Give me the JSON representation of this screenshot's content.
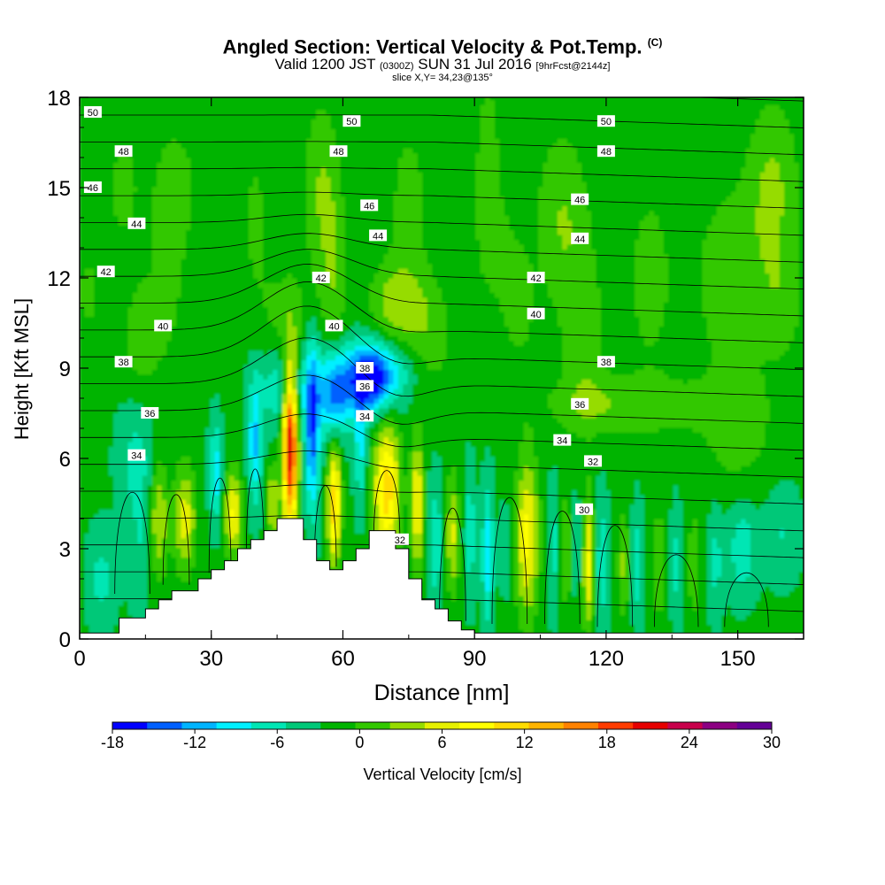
{
  "header": {
    "title": "Angled Section: Vertical Velocity & Pot.Temp.",
    "title_tag": "(C)",
    "valid_prefix": "Valid 1200 JST",
    "valid_utc": "(0300Z)",
    "valid_date": "SUN 31 Jul 2016",
    "forecast": "[9hrFcst@2144z]",
    "slice": "slice X,Y= 34,23@135°"
  },
  "chart_data": {
    "type": "heatmap",
    "xlabel": "Distance [nm]",
    "ylabel": "Height [Kft MSL]",
    "xlim": [
      0,
      165
    ],
    "ylim": [
      0,
      18
    ],
    "xticks": [
      "0",
      "30",
      "60",
      "90",
      "120",
      "150"
    ],
    "xtick_values": [
      0,
      30,
      60,
      90,
      120,
      150
    ],
    "yticks": [
      "0",
      "3",
      "6",
      "9",
      "12",
      "15",
      "18"
    ],
    "ytick_values": [
      0,
      3,
      6,
      9,
      12,
      15,
      18
    ],
    "colorbar": {
      "label": "Vertical Velocity [cm/s]",
      "min": -18,
      "max": 30,
      "step": 3,
      "tick_labels": [
        "-18",
        "-12",
        "-6",
        "0",
        "6",
        "12",
        "18",
        "24",
        "30"
      ],
      "tick_values": [
        -18,
        -12,
        -6,
        0,
        6,
        12,
        18,
        24,
        30
      ],
      "colors": [
        "#0000ff",
        "#0060ff",
        "#00b4ff",
        "#00f0ff",
        "#00e6b4",
        "#00c878",
        "#00b400",
        "#32c800",
        "#96dc00",
        "#e6f000",
        "#ffff00",
        "#ffdc00",
        "#ffb400",
        "#ff8200",
        "#ff3c00",
        "#e60000",
        "#c8004b",
        "#8c0082",
        "#640096"
      ]
    },
    "velocity_features": [
      {
        "x": 2,
        "y": 11.5,
        "w": 0.17,
        "sx": 2,
        "sy": 1
      },
      {
        "x": 10,
        "y": 15,
        "w": 0.12,
        "sx": 4,
        "sy": 2
      },
      {
        "x": 14,
        "y": 10,
        "w": 0.15,
        "sx": 4,
        "sy": 2
      },
      {
        "x": 20,
        "y": 12,
        "w": 0.12,
        "sx": 4,
        "sy": 3
      },
      {
        "x": 22,
        "y": 15,
        "w": 0.14,
        "sx": 5,
        "sy": 2
      },
      {
        "x": 40,
        "y": 14,
        "w": 0.1,
        "sx": 4,
        "sy": 3
      },
      {
        "x": 47,
        "y": 10.5,
        "w": 0.12,
        "sx": 6,
        "sy": 2
      },
      {
        "x": 55,
        "y": 15,
        "w": 0.18,
        "sx": 4,
        "sy": 3
      },
      {
        "x": 58,
        "y": 12,
        "w": 0.15,
        "sx": 3,
        "sy": 3
      },
      {
        "x": 72,
        "y": 11,
        "w": 0.25,
        "sx": 6,
        "sy": 1.5
      },
      {
        "x": 75,
        "y": 14.5,
        "w": 0.12,
        "sx": 5,
        "sy": 3
      },
      {
        "x": 80,
        "y": 10,
        "w": 0.15,
        "sx": 5,
        "sy": 2
      },
      {
        "x": 93,
        "y": 16,
        "w": 0.14,
        "sx": 3,
        "sy": 3
      },
      {
        "x": 95,
        "y": 13,
        "w": 0.1,
        "sx": 5,
        "sy": 2
      },
      {
        "x": 100,
        "y": 11,
        "w": 0.12,
        "sx": 4,
        "sy": 2
      },
      {
        "x": 110,
        "y": 14,
        "w": 0.18,
        "sx": 6,
        "sy": 3
      },
      {
        "x": 115,
        "y": 10,
        "w": 0.14,
        "sx": 5,
        "sy": 3
      },
      {
        "x": 125,
        "y": 7.8,
        "w": 0.17,
        "sx": 20,
        "sy": 1
      },
      {
        "x": 130,
        "y": 12,
        "w": 0.14,
        "sx": 5,
        "sy": 3
      },
      {
        "x": 148,
        "y": 12,
        "w": 0.16,
        "sx": 8,
        "sy": 3
      },
      {
        "x": 158,
        "y": 15,
        "w": 0.2,
        "sx": 6,
        "sy": 3
      },
      {
        "x": 150,
        "y": 7,
        "w": 0.14,
        "sx": 8,
        "sy": 2
      },
      {
        "x": 160,
        "y": 11,
        "w": 0.12,
        "sx": 5,
        "sy": 2
      },
      {
        "x": 5,
        "y": 2,
        "w": -0.15,
        "sx": 3,
        "sy": 1.5
      },
      {
        "x": 13,
        "y": 6,
        "w": -0.15,
        "sx": 4,
        "sy": 2
      },
      {
        "x": 14,
        "y": 3,
        "w": -0.1,
        "sx": 3,
        "sy": 2
      },
      {
        "x": 18,
        "y": 4,
        "w": 0.3,
        "sx": 2,
        "sy": 2
      },
      {
        "x": 24,
        "y": 4,
        "w": 0.33,
        "sx": 2.5,
        "sy": 1.8
      },
      {
        "x": 31,
        "y": 5.5,
        "w": -0.3,
        "sx": 1.3,
        "sy": 1.6
      },
      {
        "x": 35,
        "y": 4.2,
        "w": 0.4,
        "sx": 2,
        "sy": 1.4
      },
      {
        "x": 40,
        "y": 6.5,
        "w": -0.33,
        "sx": 1.5,
        "sy": 2
      },
      {
        "x": 44,
        "y": 4.5,
        "w": 0.3,
        "sx": 1.5,
        "sy": 1.2
      },
      {
        "x": 48,
        "y": 6.5,
        "w": 1,
        "sx": 1.7,
        "sy": 2.8
      },
      {
        "x": 47,
        "y": 8.4,
        "w": -0.25,
        "sx": 6,
        "sy": 1.4
      },
      {
        "x": 53,
        "y": 7,
        "w": -0.47,
        "sx": 1.6,
        "sy": 2.7
      },
      {
        "x": 58,
        "y": 4.5,
        "w": 0.55,
        "sx": 1.5,
        "sy": 2
      },
      {
        "x": 58,
        "y": 8.2,
        "w": -0.45,
        "sx": 4,
        "sy": 1.4
      },
      {
        "x": 64,
        "y": 6.5,
        "w": -0.25,
        "sx": 1.3,
        "sy": 2
      },
      {
        "x": 66,
        "y": 8.6,
        "w": -0.55,
        "sx": 5,
        "sy": 1.1
      },
      {
        "x": 70,
        "y": 5,
        "w": 0.55,
        "sx": 3,
        "sy": 2.2
      },
      {
        "x": 70,
        "y": 9,
        "w": -0.2,
        "sx": 8,
        "sy": 1.2
      },
      {
        "x": 77,
        "y": 4.5,
        "w": 0.4,
        "sx": 1.5,
        "sy": 2.2
      },
      {
        "x": 81,
        "y": 3.2,
        "w": -0.2,
        "sx": 1.8,
        "sy": 2
      },
      {
        "x": 85,
        "y": 3.5,
        "w": 0.3,
        "sx": 1.5,
        "sy": 2
      },
      {
        "x": 89,
        "y": 3.5,
        "w": -0.2,
        "sx": 1.2,
        "sy": 2
      },
      {
        "x": 93,
        "y": 2.8,
        "w": -0.3,
        "sx": 1.3,
        "sy": 2.2
      },
      {
        "x": 97,
        "y": 3,
        "w": -0.1,
        "sx": 1,
        "sy": 1.5
      },
      {
        "x": 102,
        "y": 3.4,
        "w": 0.42,
        "sx": 2.6,
        "sy": 2.6
      },
      {
        "x": 108,
        "y": 3,
        "w": -0.15,
        "sx": 1.5,
        "sy": 2
      },
      {
        "x": 111,
        "y": 3,
        "w": 0.2,
        "sx": 1.3,
        "sy": 2
      },
      {
        "x": 113,
        "y": 3.2,
        "w": -0.15,
        "sx": 1.2,
        "sy": 1.5
      },
      {
        "x": 116,
        "y": 2.5,
        "w": 0.4,
        "sx": 1.3,
        "sy": 2.2
      },
      {
        "x": 119,
        "y": 2.6,
        "w": -0.2,
        "sx": 1.3,
        "sy": 2.2
      },
      {
        "x": 124,
        "y": 2.5,
        "w": 0.2,
        "sx": 1.5,
        "sy": 1.8
      },
      {
        "x": 127,
        "y": 2.5,
        "w": -0.18,
        "sx": 1.3,
        "sy": 1.8
      },
      {
        "x": 132,
        "y": 2.5,
        "w": 0.2,
        "sx": 1.5,
        "sy": 1.8
      },
      {
        "x": 136,
        "y": 2.5,
        "w": -0.15,
        "sx": 1.3,
        "sy": 1.8
      },
      {
        "x": 140,
        "y": 2.5,
        "w": 0.15,
        "sx": 1.5,
        "sy": 2
      },
      {
        "x": 145,
        "y": 2.5,
        "w": -0.15,
        "sx": 1.5,
        "sy": 1.8
      },
      {
        "x": 151,
        "y": 3,
        "w": -0.2,
        "sx": 3,
        "sy": 1.5
      },
      {
        "x": 160,
        "y": 3.5,
        "w": -0.12,
        "sx": 4,
        "sy": 1.5
      }
    ],
    "terrain_profile": [
      [
        0,
        0.2
      ],
      [
        9,
        0.2
      ],
      [
        9,
        0.7
      ],
      [
        15,
        0.7
      ],
      [
        15,
        1.0
      ],
      [
        18,
        1.0
      ],
      [
        18,
        1.3
      ],
      [
        21,
        1.3
      ],
      [
        21,
        1.6
      ],
      [
        27,
        1.6
      ],
      [
        27,
        2.0
      ],
      [
        30,
        2.0
      ],
      [
        30,
        2.3
      ],
      [
        33,
        2.3
      ],
      [
        33,
        2.6
      ],
      [
        36,
        2.6
      ],
      [
        36,
        3.0
      ],
      [
        39,
        3.0
      ],
      [
        39,
        3.3
      ],
      [
        42,
        3.3
      ],
      [
        42,
        3.6
      ],
      [
        45,
        3.6
      ],
      [
        45,
        4.0
      ],
      [
        51,
        4.0
      ],
      [
        51,
        3.3
      ],
      [
        54,
        3.3
      ],
      [
        54,
        2.6
      ],
      [
        57,
        2.6
      ],
      [
        57,
        2.3
      ],
      [
        60,
        2.3
      ],
      [
        60,
        2.6
      ],
      [
        63,
        2.6
      ],
      [
        63,
        3.0
      ],
      [
        66,
        3.0
      ],
      [
        66,
        3.6
      ],
      [
        72,
        3.6
      ],
      [
        72,
        3.0
      ],
      [
        75,
        3.0
      ],
      [
        75,
        2.0
      ],
      [
        78,
        2.0
      ],
      [
        78,
        1.3
      ],
      [
        81,
        1.3
      ],
      [
        81,
        1.0
      ],
      [
        84,
        1.0
      ],
      [
        84,
        0.6
      ],
      [
        87,
        0.6
      ],
      [
        87,
        0.3
      ],
      [
        90,
        0.3
      ],
      [
        90,
        0.2
      ],
      [
        165,
        0.2
      ]
    ],
    "isentropes_labels": [
      {
        "label": "50",
        "x": 3,
        "y": 17.5
      },
      {
        "label": "48",
        "x": 10,
        "y": 16.2
      },
      {
        "label": "46",
        "x": 3,
        "y": 15.0
      },
      {
        "label": "44",
        "x": 13,
        "y": 13.8
      },
      {
        "label": "42",
        "x": 6,
        "y": 12.2
      },
      {
        "label": "40",
        "x": 19,
        "y": 10.4
      },
      {
        "label": "38",
        "x": 10,
        "y": 9.2
      },
      {
        "label": "36",
        "x": 16,
        "y": 7.5
      },
      {
        "label": "34",
        "x": 13,
        "y": 6.1
      },
      {
        "label": "50",
        "x": 62,
        "y": 17.2
      },
      {
        "label": "48",
        "x": 59,
        "y": 16.2
      },
      {
        "label": "46",
        "x": 66,
        "y": 14.4
      },
      {
        "label": "44",
        "x": 68,
        "y": 13.4
      },
      {
        "label": "42",
        "x": 55,
        "y": 12.0
      },
      {
        "label": "40",
        "x": 58,
        "y": 10.4
      },
      {
        "label": "38",
        "x": 65,
        "y": 9.0
      },
      {
        "label": "36",
        "x": 65,
        "y": 8.4
      },
      {
        "label": "34",
        "x": 65,
        "y": 7.4
      },
      {
        "label": "32",
        "x": 73,
        "y": 3.3
      },
      {
        "label": "50",
        "x": 120,
        "y": 17.2
      },
      {
        "label": "48",
        "x": 120,
        "y": 16.2
      },
      {
        "label": "46",
        "x": 114,
        "y": 14.6
      },
      {
        "label": "44",
        "x": 114,
        "y": 13.3
      },
      {
        "label": "42",
        "x": 104,
        "y": 12.0
      },
      {
        "label": "40",
        "x": 104,
        "y": 10.8
      },
      {
        "label": "38",
        "x": 120,
        "y": 9.2
      },
      {
        "label": "36",
        "x": 114,
        "y": 7.8
      },
      {
        "label": "34",
        "x": 110,
        "y": 6.6
      },
      {
        "label": "32",
        "x": 117,
        "y": 5.9
      },
      {
        "label": "30",
        "x": 115,
        "y": 4.3
      }
    ]
  }
}
